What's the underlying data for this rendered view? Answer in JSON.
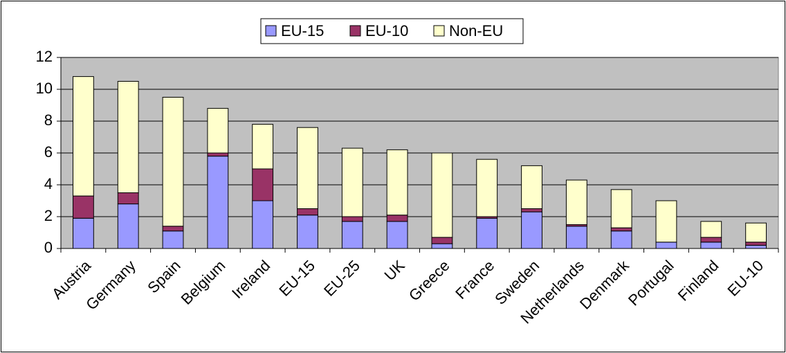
{
  "chart_data": {
    "type": "stacked_bar",
    "categories": [
      "Austria",
      "Germany",
      "Spain",
      "Belgium",
      "Ireland",
      "EU-15",
      "EU-25",
      "UK",
      "Greece",
      "France",
      "Sweden",
      "Netherlands",
      "Denmark",
      "Portugal",
      "Finland",
      "EU-10"
    ],
    "series": [
      {
        "name": "EU-15",
        "color": "#9999ff",
        "values": [
          1.9,
          2.8,
          1.1,
          5.8,
          3.0,
          2.1,
          1.7,
          1.7,
          0.3,
          1.9,
          2.3,
          1.4,
          1.1,
          0.4,
          0.4,
          0.2
        ]
      },
      {
        "name": "EU-10",
        "color": "#993366",
        "values": [
          1.4,
          0.7,
          0.3,
          0.2,
          2.0,
          0.4,
          0.3,
          0.4,
          0.4,
          0.1,
          0.2,
          0.1,
          0.2,
          0.0,
          0.3,
          0.2
        ]
      },
      {
        "name": "Non-EU",
        "color": "#ffffcc",
        "values": [
          7.5,
          7.0,
          8.1,
          2.8,
          2.8,
          5.1,
          4.3,
          4.1,
          5.3,
          3.6,
          2.7,
          2.8,
          2.4,
          2.6,
          1.0,
          1.2
        ]
      }
    ],
    "ylim": [
      0,
      12
    ],
    "yticks": [
      0,
      2,
      4,
      6,
      8,
      10,
      12
    ],
    "grid": true,
    "legend": "top",
    "background": "#c0c0c0"
  }
}
